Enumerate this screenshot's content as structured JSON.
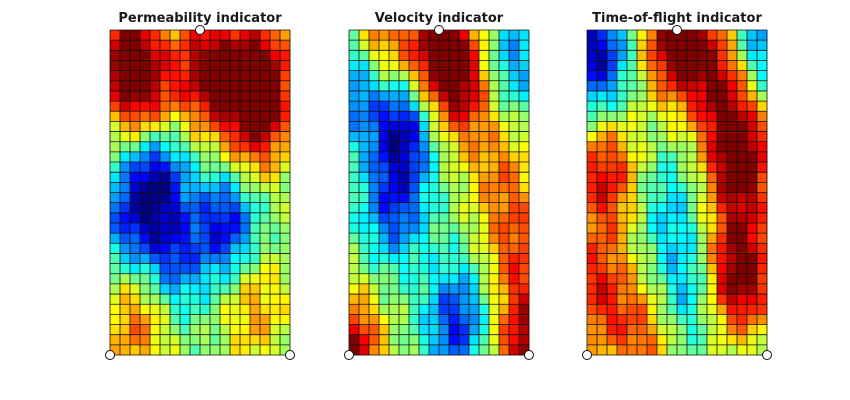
{
  "figure": {
    "panels": [
      {
        "title": "Permeability indicator"
      },
      {
        "title": "Velocity indicator"
      },
      {
        "title": "Time-of-flight indicator"
      }
    ]
  },
  "chart_data": [
    {
      "type": "heatmap",
      "title": "Permeability indicator",
      "colormap": "jet",
      "grid": true,
      "wells": [
        [
          0,
          0
        ],
        [
          1,
          0
        ],
        [
          0.5,
          1
        ]
      ],
      "hot_spots": [
        [
          0.1,
          0.93,
          0.8
        ],
        [
          0.55,
          0.88,
          0.9
        ],
        [
          0.85,
          0.87,
          0.8
        ],
        [
          0.2,
          0.78,
          0.6
        ],
        [
          0.8,
          0.7,
          0.6
        ],
        [
          0.15,
          0.1,
          0.5
        ],
        [
          0.8,
          0.15,
          0.4
        ]
      ],
      "cold_spots": [
        [
          0.25,
          0.55,
          0.9
        ],
        [
          0.65,
          0.4,
          0.8
        ],
        [
          0.35,
          0.3,
          0.6
        ],
        [
          0.1,
          0.4,
          0.5
        ]
      ]
    },
    {
      "type": "heatmap",
      "title": "Velocity indicator",
      "colormap": "jet",
      "grid": true,
      "wells": [
        [
          0,
          0
        ],
        [
          1,
          0
        ],
        [
          0.5,
          1
        ]
      ],
      "hot_spots": [
        [
          0.15,
          0.95,
          0.7
        ],
        [
          0.5,
          0.93,
          0.9
        ],
        [
          0.65,
          0.82,
          0.6
        ],
        [
          0.0,
          0.0,
          0.9
        ],
        [
          1.0,
          0.0,
          0.9
        ],
        [
          0.95,
          0.3,
          0.5
        ],
        [
          0.85,
          0.55,
          0.4
        ]
      ],
      "cold_spots": [
        [
          0.05,
          0.85,
          0.8
        ],
        [
          0.3,
          0.7,
          0.9
        ],
        [
          0.25,
          0.45,
          0.6
        ],
        [
          0.6,
          0.1,
          0.7
        ],
        [
          0.9,
          0.9,
          0.5
        ]
      ]
    },
    {
      "type": "heatmap",
      "title": "Time-of-flight indicator",
      "colormap": "jet",
      "grid": true,
      "wells": [
        [
          0,
          0
        ],
        [
          1,
          0
        ],
        [
          0.5,
          1
        ]
      ],
      "hot_spots": [
        [
          0.5,
          0.97,
          1.0
        ],
        [
          0.85,
          0.6,
          1.0
        ],
        [
          0.85,
          0.25,
          1.0
        ],
        [
          0.1,
          0.55,
          0.7
        ],
        [
          0.05,
          0.2,
          0.6
        ],
        [
          0.3,
          0.05,
          0.5
        ],
        [
          0.75,
          0.85,
          0.7
        ]
      ],
      "cold_spots": [
        [
          0.05,
          0.92,
          0.9
        ],
        [
          0.95,
          0.95,
          0.6
        ],
        [
          0.45,
          0.45,
          0.3
        ],
        [
          0.55,
          0.2,
          0.4
        ]
      ]
    }
  ]
}
